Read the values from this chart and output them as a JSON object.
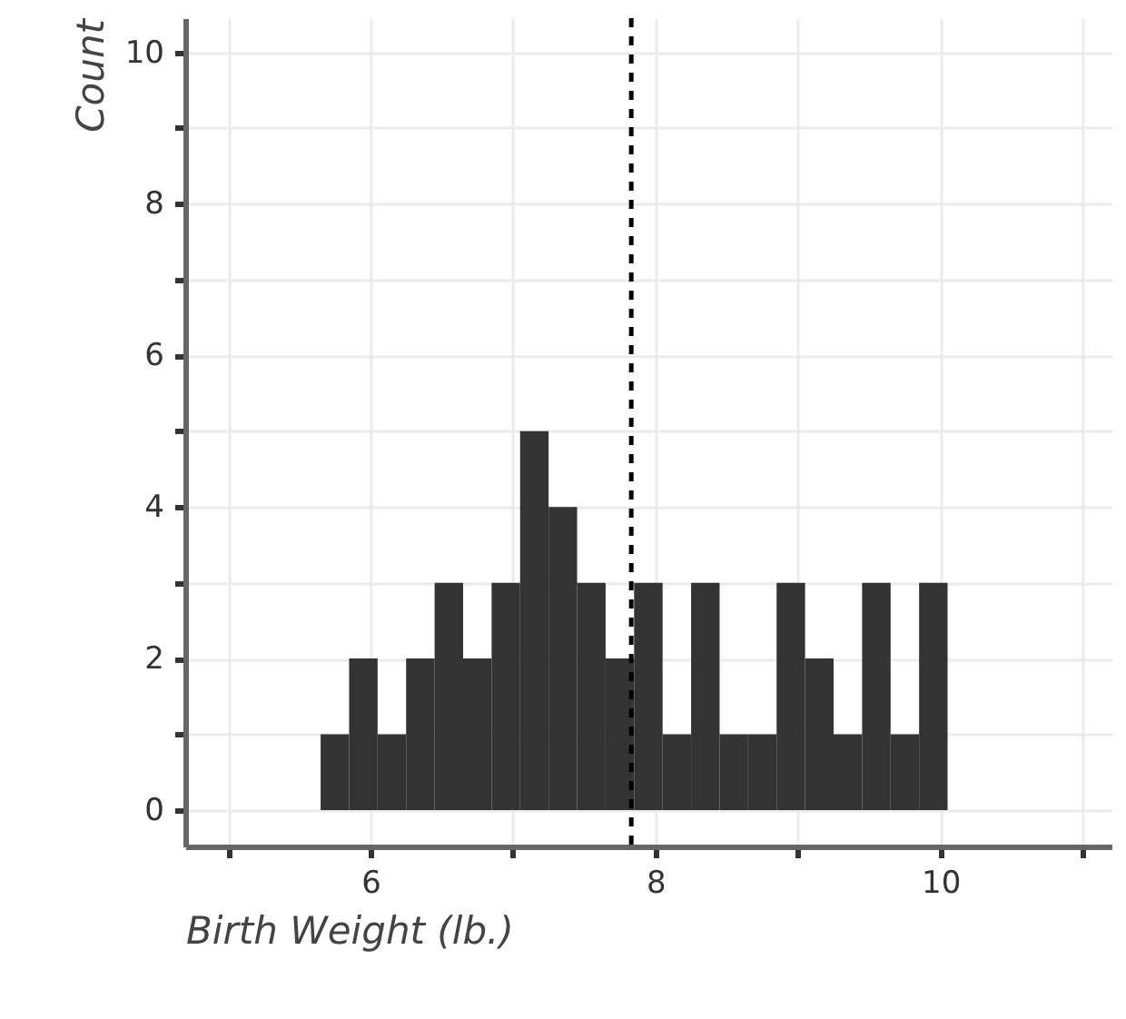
{
  "chart_data": {
    "type": "histogram",
    "xlabel": "Birth Weight (lb.)",
    "ylabel": "Count",
    "bins": [
      5.65,
      5.85,
      6.05,
      6.25,
      6.45,
      6.65,
      6.85,
      7.05,
      7.25,
      7.45,
      7.65,
      7.85,
      8.05,
      8.25,
      8.45,
      8.65,
      8.85,
      9.05,
      9.25,
      9.45,
      9.65,
      9.85,
      10.05
    ],
    "values": [
      1,
      2,
      1,
      2,
      3,
      2,
      3,
      5,
      4,
      3,
      2,
      3,
      1,
      3,
      1,
      1,
      3,
      2,
      1,
      3,
      1,
      3
    ],
    "color": "#333333",
    "xlim": [
      4.7,
      11.2
    ],
    "xticks": [
      {
        "value": 5,
        "label": null
      },
      6,
      {
        "value": 7,
        "label": null
      },
      8,
      {
        "value": 9,
        "label": null
      },
      10,
      {
        "value": 11,
        "label": null
      }
    ],
    "ylim": [
      -0.48,
      10.45
    ],
    "yticks": [
      0,
      {
        "value": 1,
        "label": null
      },
      2,
      {
        "value": 3,
        "label": null
      },
      4,
      {
        "value": 5,
        "label": null
      },
      6,
      {
        "value": 7,
        "label": null
      },
      8,
      {
        "value": 9,
        "label": null
      },
      10
    ],
    "grid": true,
    "ref_lines": [
      {
        "axis": "x",
        "value": 7.83,
        "line_style": "dashed",
        "color": "#000000"
      }
    ]
  }
}
